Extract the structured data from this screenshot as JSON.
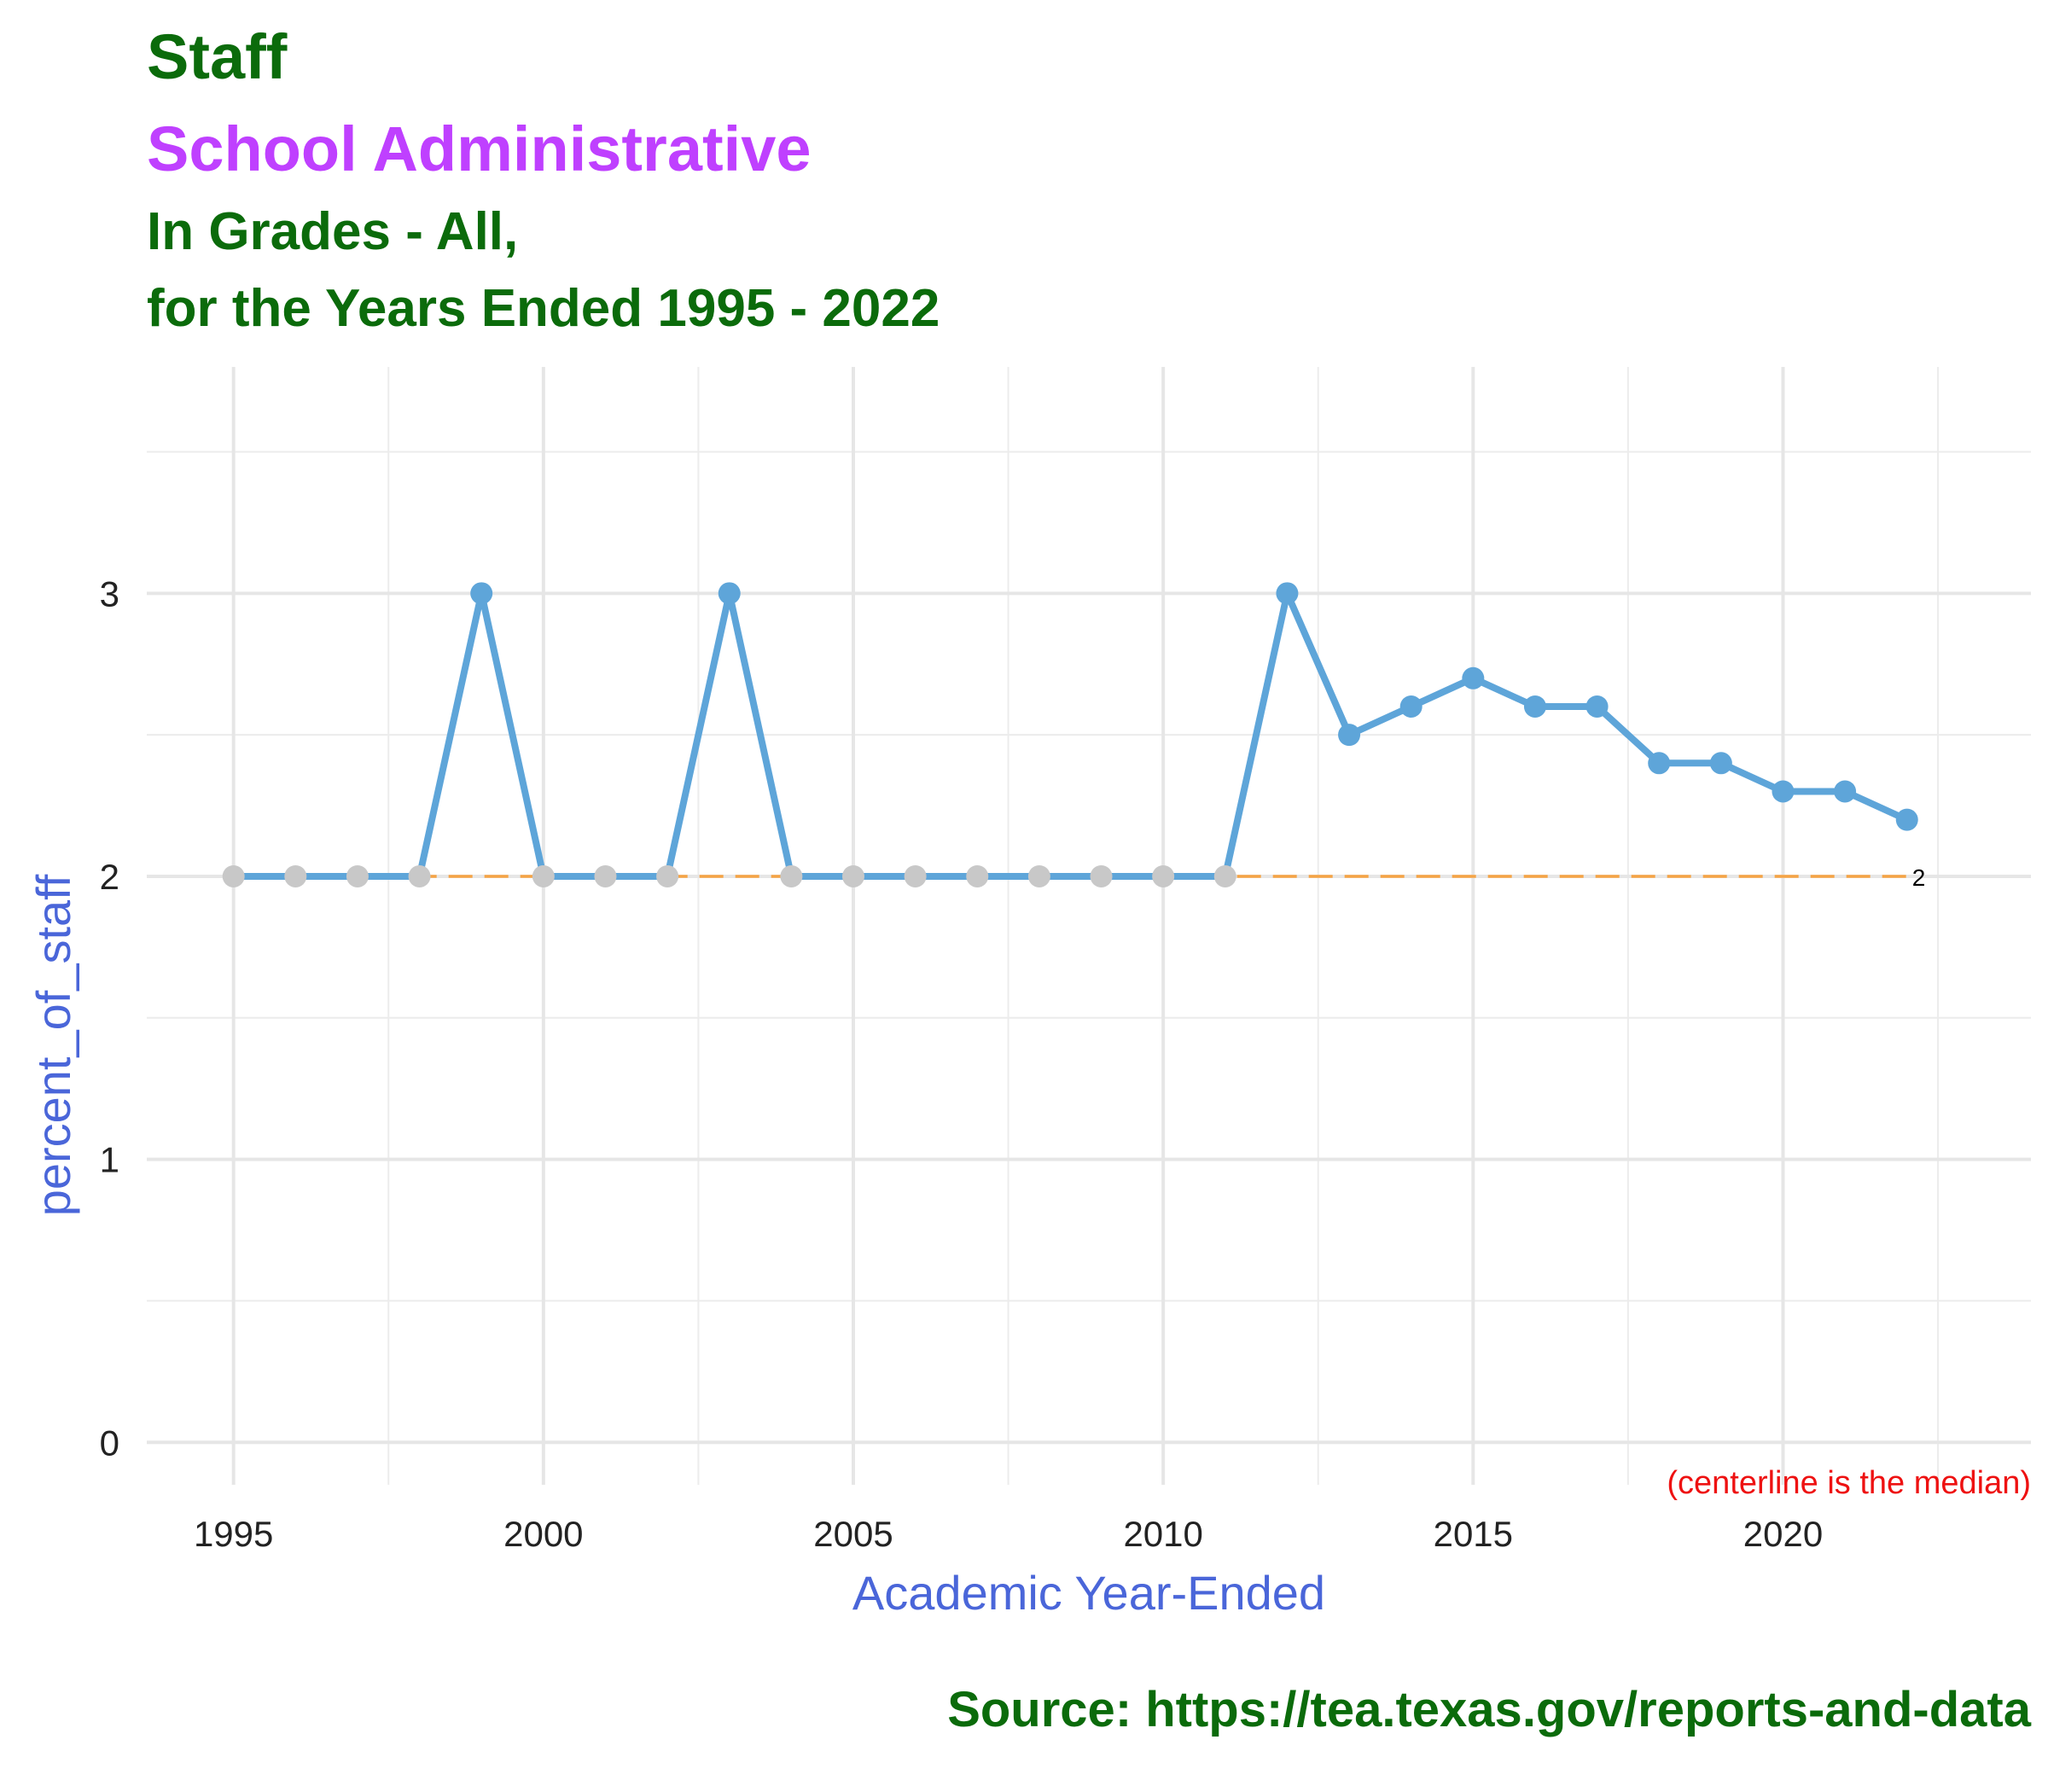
{
  "titles": {
    "line1": "Staff",
    "line2": "School Administrative",
    "line3": "In Grades - All,",
    "line4": "for the Years Ended 1995 - 2022"
  },
  "caption": "Source:  https://tea.texas.gov/reports-and-data",
  "colors": {
    "title_green": "#0b6b0b",
    "subtitle_purple": "#bf40ff",
    "axis_label_blue": "#4a66d9",
    "line_blue": "#5ea5d9",
    "point_blue": "#5ea5d9",
    "point_gray": "#c8c8c8",
    "median_orange": "#f5a445",
    "note_red": "#ee1111"
  },
  "chart_data": {
    "type": "line",
    "xlabel": "Academic Year-Ended",
    "ylabel": "percent_of_staff",
    "xlim": [
      1993.6,
      2024
    ],
    "ylim": [
      -0.15,
      3.8
    ],
    "x_ticks": [
      1995,
      2000,
      2005,
      2010,
      2015,
      2020
    ],
    "y_ticks": [
      0,
      1,
      2,
      3
    ],
    "grid": true,
    "x": [
      1995,
      1996,
      1997,
      1998,
      1999,
      2000,
      2001,
      2002,
      2003,
      2004,
      2005,
      2006,
      2007,
      2008,
      2009,
      2010,
      2011,
      2012,
      2013,
      2014,
      2015,
      2016,
      2017,
      2018,
      2019,
      2020,
      2021,
      2022
    ],
    "series": [
      {
        "values": [
          2,
          2,
          2,
          2,
          3,
          2,
          2,
          2,
          3,
          2,
          2,
          2,
          2,
          2,
          2,
          2,
          2,
          3,
          2.5,
          2.6,
          2.7,
          2.6,
          2.6,
          2.4,
          2.4,
          2.3,
          2.3,
          2.2
        ]
      }
    ],
    "median": 2,
    "median_label": "2",
    "note": "(centerline is the median)"
  }
}
